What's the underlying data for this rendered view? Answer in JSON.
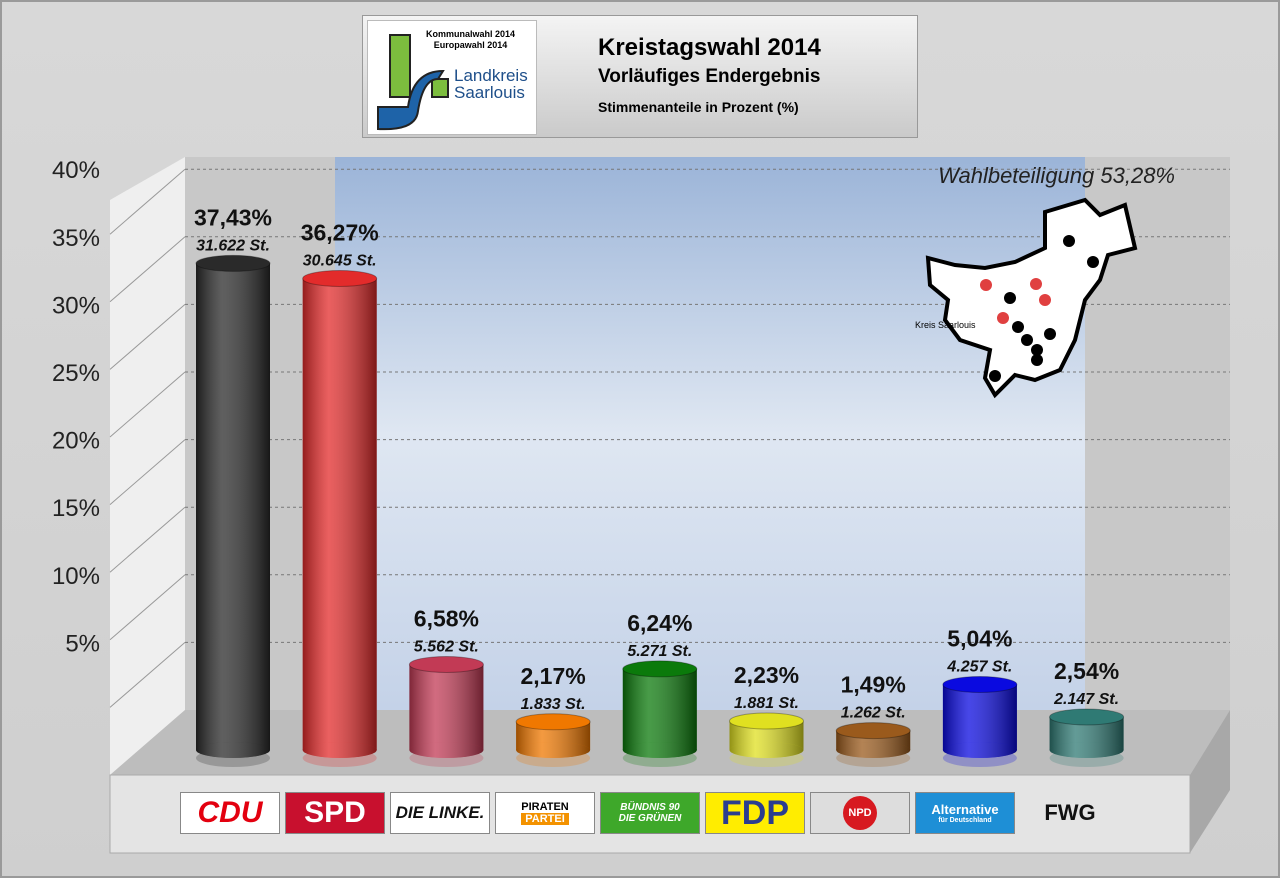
{
  "header": {
    "logo_line1": "Kommunalwahl 2014",
    "logo_line2": "Europawahl 2014",
    "logo_name1": "Landkreis",
    "logo_name2": "Saarlouis",
    "title": "Kreistagswahl 2014",
    "subtitle": "Vorläufiges Endergebnis",
    "note": "Stimmenanteile in Prozent (%)"
  },
  "chart_data": {
    "type": "bar",
    "title": "Kreistagswahl 2014",
    "ylabel": "Stimmenanteile in Prozent (%)",
    "ylim": [
      0,
      40
    ],
    "yticks": [
      "5%",
      "10%",
      "15%",
      "20%",
      "25%",
      "30%",
      "35%",
      "40%"
    ],
    "annotation": "Wahlbeteiligung 53,28%",
    "map_label": "Kreis Saarlouis",
    "categories": [
      "CDU",
      "SPD",
      "DIE LINKE.",
      "PIRATEN PARTEI",
      "BÜNDNIS 90 DIE GRÜNEN",
      "FDP",
      "NPD",
      "Alternative für Deutschland",
      "FWG"
    ],
    "values": [
      37.43,
      36.27,
      6.58,
      2.17,
      6.24,
      2.23,
      1.49,
      5.04,
      2.54
    ],
    "value_labels": [
      "37,43%",
      "36,27%",
      "6,58%",
      "2,17%",
      "6,24%",
      "2,23%",
      "1,49%",
      "5,04%",
      "2,54%"
    ],
    "votes": [
      "31.622 St.",
      "30.645 St.",
      "5.562 St.",
      "1.833 St.",
      "5.271 St.",
      "1.881 St.",
      "1.262 St.",
      "4.257 St.",
      "2.147 St."
    ],
    "colors": [
      "#2a2a2a",
      "#e32b2b",
      "#c23a55",
      "#f07800",
      "#0b7a0b",
      "#e0e020",
      "#9a5a1c",
      "#0a0ae0",
      "#2f7a74"
    ]
  },
  "legend": {
    "cdu": "CDU",
    "spd": "SPD",
    "linke": "DIE LINKE.",
    "piraten1": "PIRATEN",
    "piraten2": "PARTEI",
    "gruene1": "BÜNDNIS 90",
    "gruene2": "DIE GRÜNEN",
    "fdp": "FDP",
    "npd": "NPD",
    "afd1": "Alternative",
    "afd2": "für Deutschland",
    "fwg": "FWG"
  }
}
